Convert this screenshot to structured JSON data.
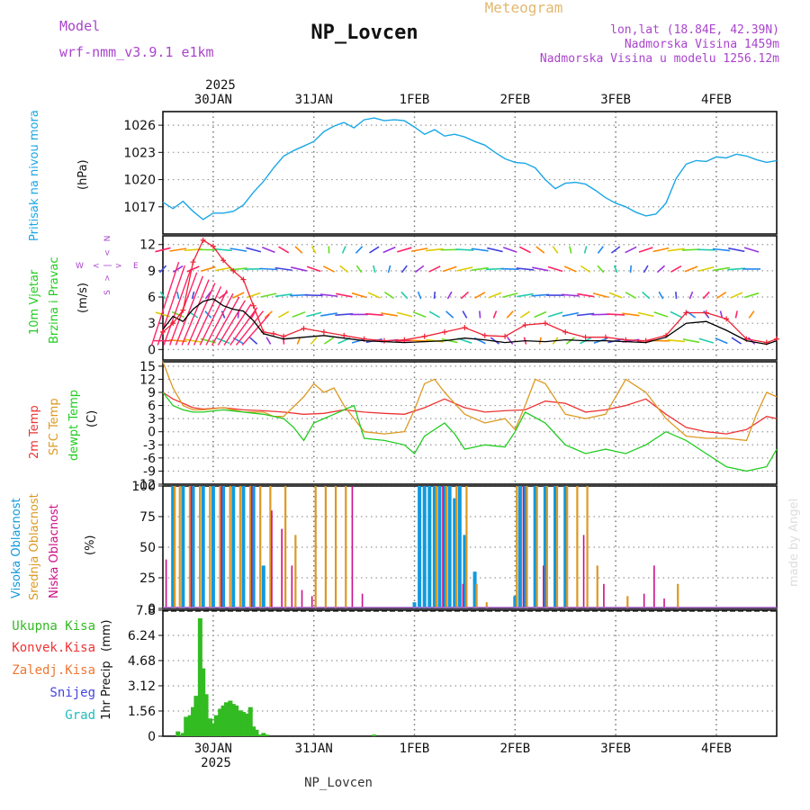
{
  "header": {
    "model_label": "Model",
    "model_name": "wrf-nmm_v3.9.1 e1km",
    "title": "NP_Lovcen",
    "product": "Meteogram",
    "lonlat": "lon,lat (18.84E, 42.39N)",
    "elevation": "Nadmorska Visina 1459m",
    "model_elevation": "Nadmorska Visina u modelu 1256.12m"
  },
  "footer": {
    "station": "NP_Lovcen",
    "credit": "made by Angel"
  },
  "time_axis": {
    "year": "2025",
    "day_labels": [
      "30JAN",
      "31JAN",
      "1FEB",
      "2FEB",
      "3FEB",
      "4FEB"
    ],
    "day_pos": [
      0.5,
      1.5,
      2.5,
      3.5,
      4.5,
      5.5
    ],
    "range": [
      0,
      6.1
    ]
  },
  "colors": {
    "pressure": "#1aa7e6",
    "t2m": "#ee3333",
    "sfc": "#dd9922",
    "dew": "#22cc22",
    "high": "#1199dd",
    "mid": "#dd9922",
    "low": "#cc1188",
    "precip": "#33bb22",
    "wind": "#000000",
    "gust": "#ee2233",
    "label_model": "#aa44cc"
  },
  "chart_data": [
    {
      "type": "line",
      "title": "",
      "ylabel": "Pritisak na nivou mora",
      "unit": "(hPa)",
      "ylim": [
        1014,
        1027.5
      ],
      "yticks": [
        "1026",
        "1023",
        "1020",
        "1017"
      ],
      "series": [
        {
          "x": [
            0,
            0.1,
            0.2,
            0.3,
            0.4,
            0.5,
            0.6,
            0.7,
            0.8,
            0.9,
            1.0,
            1.1,
            1.2,
            1.3,
            1.4,
            1.5,
            1.6,
            1.7,
            1.8,
            1.9,
            2.0,
            2.1,
            2.2,
            2.3,
            2.4,
            2.5,
            2.6,
            2.7,
            2.8,
            2.9,
            3.0,
            3.1,
            3.2,
            3.3,
            3.4,
            3.5,
            3.6,
            3.7,
            3.8,
            3.9,
            4.0,
            4.1,
            4.2,
            4.3,
            4.4,
            4.5,
            4.6,
            4.7,
            4.8,
            4.9,
            5.0,
            5.1,
            5.2,
            5.3,
            5.4,
            5.5,
            5.6,
            5.7,
            5.8,
            5.9,
            6.0,
            6.1
          ],
          "values": [
            1017.5,
            1016.8,
            1017.6,
            1016.5,
            1015.6,
            1016.3,
            1016.3,
            1016.5,
            1017.2,
            1018.6,
            1019.8,
            1021.3,
            1022.6,
            1023.2,
            1023.7,
            1024.2,
            1025.3,
            1025.9,
            1026.3,
            1025.7,
            1026.6,
            1026.8,
            1026.5,
            1026.6,
            1026.5,
            1025.8,
            1025.0,
            1025.5,
            1024.8,
            1025.0,
            1024.7,
            1024.2,
            1023.8,
            1023.0,
            1022.3,
            1021.9,
            1021.8,
            1021.3,
            1020.0,
            1019.0,
            1019.6,
            1019.7,
            1019.5,
            1018.8,
            1018.0,
            1017.4,
            1017.0,
            1016.4,
            1016.0,
            1016.2,
            1017.4,
            1020.1,
            1021.7,
            1022.1,
            1022.0,
            1022.5,
            1022.4,
            1022.8,
            1022.6,
            1022.2,
            1021.9,
            1022.1
          ]
        }
      ]
    },
    {
      "type": "line",
      "title": "",
      "ylabel": "10m Vjetar Brzina i Pravac",
      "unit": "(m/s)",
      "ylim": [
        -1.2,
        13
      ],
      "yticks": [
        "12",
        "9",
        "6",
        "3",
        "0"
      ],
      "compass": {
        "n": "N",
        "s": "S",
        "w": "W",
        "e": "E"
      },
      "series": [
        {
          "name": "speed",
          "x": [
            0,
            0.1,
            0.2,
            0.3,
            0.4,
            0.5,
            0.6,
            0.7,
            0.8,
            0.9,
            1.0,
            1.1,
            1.2,
            1.4,
            1.6,
            1.8,
            2.0,
            2.2,
            2.4,
            2.6,
            2.8,
            3.0,
            3.2,
            3.4,
            3.6,
            3.8,
            4.0,
            4.2,
            4.4,
            4.6,
            4.8,
            5.0,
            5.2,
            5.4,
            5.6,
            5.8,
            6.0,
            6.1
          ],
          "values": [
            2.3,
            3.8,
            3.2,
            4.6,
            5.5,
            5.8,
            5.0,
            4.6,
            4.4,
            3.3,
            1.8,
            1.5,
            1.2,
            1.4,
            1.6,
            1.3,
            1.0,
            0.9,
            0.8,
            0.9,
            1.0,
            1.3,
            1.1,
            0.8,
            1.0,
            0.9,
            1.1,
            1.0,
            1.0,
            0.9,
            0.8,
            1.4,
            3.0,
            3.2,
            2.2,
            1.0,
            0.6,
            1.0
          ]
        },
        {
          "name": "gust",
          "x": [
            0,
            0.1,
            0.2,
            0.3,
            0.4,
            0.5,
            0.6,
            0.7,
            0.8,
            0.9,
            1.0,
            1.1,
            1.2,
            1.4,
            1.6,
            1.8,
            2.0,
            2.2,
            2.4,
            2.6,
            2.8,
            3.0,
            3.2,
            3.4,
            3.6,
            3.8,
            4.0,
            4.2,
            4.4,
            4.6,
            4.8,
            5.0,
            5.2,
            5.4,
            5.6,
            5.8,
            6.0,
            6.1
          ],
          "values": [
            2.0,
            3.0,
            4.5,
            10.0,
            12.5,
            11.8,
            10.2,
            9.0,
            8.0,
            5.0,
            2.0,
            1.8,
            1.5,
            2.4,
            2.0,
            1.6,
            1.2,
            1.0,
            1.1,
            1.5,
            2.0,
            2.5,
            1.6,
            1.5,
            2.8,
            3.0,
            2.0,
            1.4,
            1.4,
            1.1,
            1.0,
            1.6,
            4.2,
            4.2,
            3.5,
            1.2,
            0.8,
            1.2
          ]
        }
      ]
    },
    {
      "type": "line",
      "title": "",
      "ylabel": "2m Temp / SFC Temp / dewpt Temp",
      "unit": "(C)",
      "ylim": [
        -12,
        16
      ],
      "yticks": [
        "15",
        "12",
        "9",
        "6",
        "3",
        "0",
        "-3",
        "-6",
        "-9",
        "-12"
      ],
      "series": [
        {
          "name": "2m Temp",
          "x": [
            0,
            0.1,
            0.2,
            0.3,
            0.4,
            0.6,
            0.8,
            1.0,
            1.2,
            1.4,
            1.6,
            1.8,
            2.0,
            2.2,
            2.4,
            2.6,
            2.8,
            3.0,
            3.2,
            3.4,
            3.6,
            3.8,
            4.0,
            4.2,
            4.4,
            4.6,
            4.8,
            5.0,
            5.2,
            5.4,
            5.6,
            5.8,
            6.0,
            6.1
          ],
          "values": [
            9,
            7.5,
            6.5,
            5.5,
            5.2,
            5.5,
            5.0,
            4.8,
            4.5,
            4.0,
            4.2,
            5.0,
            4.5,
            4.2,
            4.0,
            5.5,
            7.5,
            5.5,
            4.5,
            4.8,
            5.0,
            7.0,
            6.5,
            4.5,
            5.0,
            6.0,
            7.5,
            4.0,
            1.0,
            0,
            -0.5,
            0.5,
            3.5,
            3.0
          ]
        },
        {
          "name": "SFC Temp",
          "x": [
            0,
            0.1,
            0.2,
            0.3,
            0.4,
            0.6,
            0.8,
            1.0,
            1.1,
            1.2,
            1.4,
            1.5,
            1.6,
            1.7,
            1.8,
            2.0,
            2.2,
            2.4,
            2.5,
            2.6,
            2.7,
            2.8,
            3.0,
            3.2,
            3.4,
            3.5,
            3.6,
            3.7,
            3.8,
            4.0,
            4.2,
            4.4,
            4.5,
            4.6,
            4.8,
            5.0,
            5.2,
            5.4,
            5.6,
            5.8,
            5.9,
            6.0,
            6.1
          ],
          "values": [
            16,
            10,
            6,
            5,
            5,
            5.5,
            4.5,
            4.5,
            3.5,
            3.5,
            8,
            11,
            9,
            10,
            6,
            0,
            -0.5,
            0,
            5,
            11,
            12,
            9,
            4,
            2,
            3,
            0.5,
            6,
            12,
            11,
            4,
            3,
            4,
            8,
            12,
            9,
            3,
            -1,
            -1.5,
            -1.5,
            -2,
            4,
            9,
            8
          ]
        },
        {
          "name": "dewpt Temp",
          "x": [
            0,
            0.1,
            0.2,
            0.3,
            0.4,
            0.6,
            0.8,
            1.0,
            1.2,
            1.3,
            1.4,
            1.5,
            1.6,
            1.7,
            1.8,
            1.9,
            2.0,
            2.2,
            2.4,
            2.5,
            2.6,
            2.8,
            2.9,
            3.0,
            3.2,
            3.4,
            3.5,
            3.6,
            3.8,
            4.0,
            4.2,
            4.4,
            4.6,
            4.8,
            5.0,
            5.2,
            5.4,
            5.6,
            5.8,
            6.0,
            6.1
          ],
          "values": [
            9,
            6,
            5,
            4.5,
            4.5,
            5,
            4.5,
            4,
            3,
            1,
            -2,
            2,
            3,
            4,
            5,
            6,
            -1.5,
            -2,
            -3,
            -5,
            -1,
            2,
            -0.5,
            -4,
            -3,
            -3.5,
            0,
            4.5,
            2,
            -3,
            -5,
            -4,
            -5,
            -3,
            0,
            -2,
            -5,
            -8,
            -9,
            -8,
            -4
          ]
        }
      ]
    },
    {
      "type": "bar",
      "title": "",
      "ylabel": "Visoka / Srednja / Niska Oblacnost",
      "unit": "(%)",
      "ylim": [
        0,
        100
      ],
      "yticks": [
        "100",
        "75",
        "50",
        "25",
        "0"
      ],
      "series": [
        {
          "name": "Visoka Oblacnost",
          "x": [
            0.1,
            0.2,
            0.3,
            0.4,
            0.5,
            0.6,
            0.7,
            0.8,
            0.9,
            1.0,
            2.5,
            2.55,
            2.6,
            2.65,
            2.7,
            2.75,
            2.8,
            2.85,
            2.9,
            2.95,
            3.0,
            3.1,
            3.5,
            3.55,
            3.6,
            3.7,
            3.8,
            3.9,
            4.0
          ],
          "values": [
            100,
            100,
            100,
            100,
            100,
            100,
            100,
            100,
            100,
            35,
            5,
            100,
            100,
            100,
            100,
            100,
            100,
            100,
            90,
            100,
            60,
            30,
            10,
            100,
            100,
            100,
            100,
            100,
            100
          ]
        },
        {
          "name": "Srednja Oblacnost",
          "x": [
            0.1,
            0.15,
            0.25,
            0.35,
            0.45,
            0.55,
            0.65,
            0.75,
            0.85,
            0.95,
            1.05,
            1.2,
            1.3,
            1.5,
            1.6,
            1.7,
            1.8,
            2.7,
            2.8,
            2.9,
            3.0,
            3.1,
            3.2,
            3.5,
            3.6,
            3.7,
            3.8,
            3.9,
            4.0,
            4.1,
            4.2,
            4.3,
            4.6,
            5.1
          ],
          "values": [
            100,
            100,
            100,
            100,
            100,
            100,
            100,
            100,
            100,
            100,
            100,
            100,
            60,
            100,
            100,
            100,
            100,
            100,
            100,
            100,
            100,
            20,
            5,
            100,
            100,
            100,
            100,
            100,
            100,
            100,
            100,
            35,
            10,
            20
          ]
        },
        {
          "name": "Niska Oblacnost",
          "x": [
            0.05,
            0.3,
            0.6,
            0.9,
            1.1,
            1.2,
            1.3,
            1.4,
            1.5,
            1.9,
            2.0,
            2.8,
            3.0,
            3.6,
            3.8,
            4.2,
            4.4,
            4.8,
            4.9,
            5.0
          ],
          "values": [
            40,
            100,
            100,
            100,
            80,
            65,
            35,
            15,
            10,
            100,
            12,
            100,
            20,
            100,
            35,
            60,
            20,
            12,
            35,
            8
          ]
        }
      ]
    },
    {
      "type": "bar",
      "title": "",
      "ylabel": "1hr Precip",
      "unit": "(mm)",
      "ylim": [
        0,
        7.8
      ],
      "yticks": [
        "7.8",
        "6.24",
        "4.68",
        "3.12",
        "1.56",
        "0"
      ],
      "legend": [
        "Ukupna Kisa",
        "Konvek.Kisa",
        "Zaledj.Kisa",
        "Snijeg",
        "Grad"
      ],
      "x": [
        0.15,
        0.2,
        0.23,
        0.27,
        0.3,
        0.33,
        0.37,
        0.4,
        0.43,
        0.47,
        0.5,
        0.53,
        0.57,
        0.6,
        0.63,
        0.67,
        0.7,
        0.73,
        0.77,
        0.8,
        0.83,
        0.87,
        0.9,
        0.93,
        0.97,
        1.0,
        1.03,
        2.1
      ],
      "values": [
        0.3,
        0.2,
        1.2,
        1.3,
        1.8,
        2.5,
        7.3,
        4.2,
        2.6,
        1.1,
        0.8,
        1.3,
        1.7,
        1.9,
        2.1,
        2.2,
        2.0,
        1.9,
        1.6,
        1.5,
        1.4,
        1.8,
        0.6,
        0.4,
        0.1,
        0.2,
        0.1,
        0.1
      ]
    }
  ]
}
